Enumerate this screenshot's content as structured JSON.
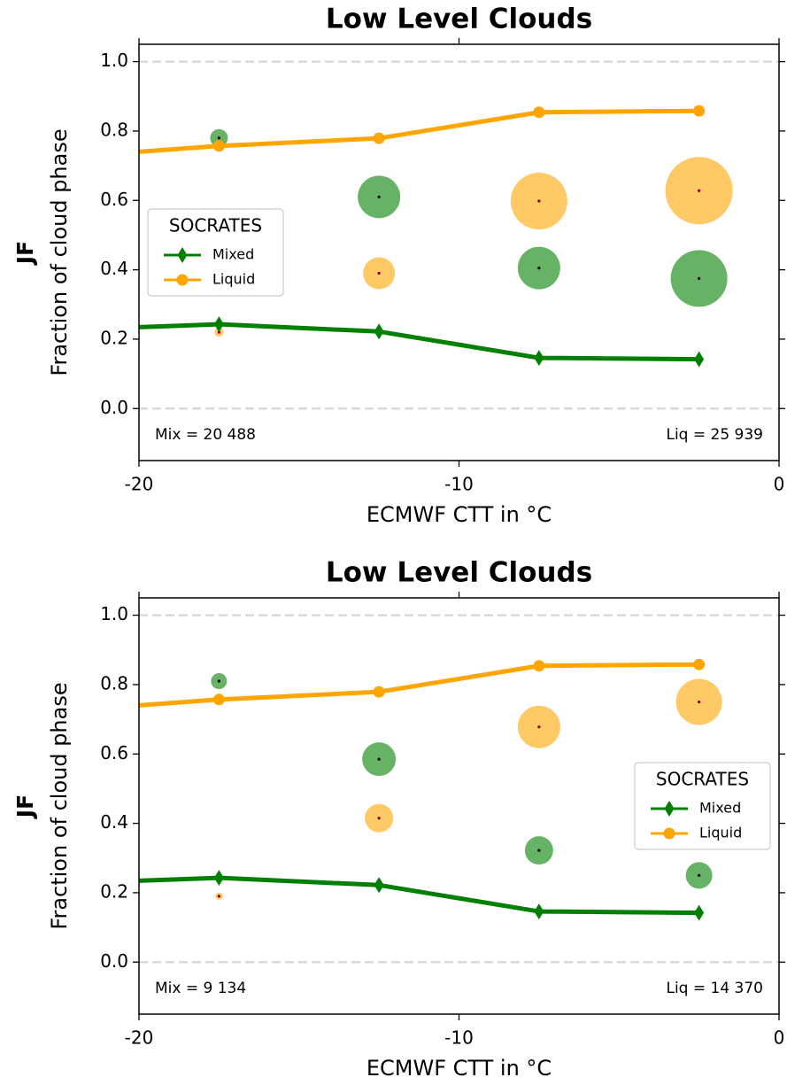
{
  "chart_data": [
    {
      "type": "line",
      "title": "Low Level Clouds",
      "ylabel_bold": "JF",
      "ylabel": "Fraction of cloud phase",
      "xlabel": "ECMWF CTT in °C",
      "xlim": [
        -20,
        0
      ],
      "xticks": [
        -20,
        -10,
        0
      ],
      "ylim": [
        -0.15,
        1.05
      ],
      "yticks": [
        {
          "value": 0,
          "label": "0.0"
        },
        0.2,
        0.4,
        0.6,
        0.8,
        {
          "value": 1,
          "label": "1.0"
        }
      ],
      "reference_lines": [
        0,
        1
      ],
      "x": [
        -22.5,
        -17.5,
        -12.5,
        -7.5,
        -2.5
      ],
      "series": [
        {
          "name": "Mixed",
          "color": "#008000",
          "marker": "diamond",
          "values": [
            0.226,
            0.243,
            0.222,
            0.146,
            0.142
          ]
        },
        {
          "name": "Liquid",
          "color": "#ffa500",
          "marker": "circle",
          "values": [
            0.723,
            0.757,
            0.779,
            0.854,
            0.858
          ]
        }
      ],
      "bubbles": [
        {
          "color": "#008000",
          "center_color": "#000000",
          "x": [
            -17.5,
            -12.5,
            -7.5,
            -2.5
          ],
          "values": [
            0.78,
            0.61,
            0.405,
            0.375
          ],
          "sizes": [
            100,
            576,
            576,
            1024
          ]
        },
        {
          "color": "#ffa500",
          "center_color": "#8b0000",
          "x": [
            -17.5,
            -12.5,
            -7.5,
            -2.5
          ],
          "values": [
            0.22,
            0.39,
            0.598,
            0.628
          ],
          "sizes": [
            25,
            324,
            1024,
            1444
          ]
        }
      ],
      "legend_title": "SOCRATES",
      "legend": "center left",
      "annotations": [
        {
          "text": "Mix = 20 488",
          "corner": "lower left"
        },
        {
          "text": "Liq = 25 939",
          "corner": "lower right"
        }
      ]
    },
    {
      "type": "line",
      "title": "Low Level Clouds",
      "ylabel_bold": "JF",
      "ylabel": "Fraction of cloud phase",
      "xlabel": "ECMWF CTT in °C",
      "xlim": [
        -20,
        0
      ],
      "xticks": [
        -20,
        -10,
        0
      ],
      "ylim": [
        -0.15,
        1.05
      ],
      "yticks": [
        {
          "value": 0,
          "label": "0.0"
        },
        0.2,
        0.4,
        0.6,
        0.8,
        {
          "value": 1,
          "label": "1.0"
        }
      ],
      "reference_lines": [
        0,
        1
      ],
      "x": [
        -22.5,
        -17.5,
        -12.5,
        -7.5,
        -2.5
      ],
      "series": [
        {
          "name": "Mixed",
          "color": "#008000",
          "marker": "diamond",
          "values": [
            0.226,
            0.243,
            0.222,
            0.146,
            0.142
          ]
        },
        {
          "name": "Liquid",
          "color": "#ffa500",
          "marker": "circle",
          "values": [
            0.723,
            0.757,
            0.779,
            0.854,
            0.858
          ]
        }
      ],
      "bubbles": [
        {
          "color": "#008000",
          "center_color": "#000000",
          "x": [
            -17.5,
            -12.5,
            -7.5,
            -2.5
          ],
          "values": [
            0.81,
            0.585,
            0.322,
            0.25
          ],
          "sizes": [
            81,
            361,
            256,
            225
          ]
        },
        {
          "color": "#ffa500",
          "center_color": "#8b0000",
          "x": [
            -17.5,
            -12.5,
            -7.5,
            -2.5
          ],
          "values": [
            0.19,
            0.415,
            0.678,
            0.75
          ],
          "sizes": [
            16,
            256,
            576,
            676
          ]
        }
      ],
      "legend_title": "SOCRATES",
      "legend": "center right",
      "annotations": [
        {
          "text": "Mix = 9 134",
          "corner": "lower left"
        },
        {
          "text": "Liq = 14 370",
          "corner": "lower right"
        }
      ]
    }
  ]
}
